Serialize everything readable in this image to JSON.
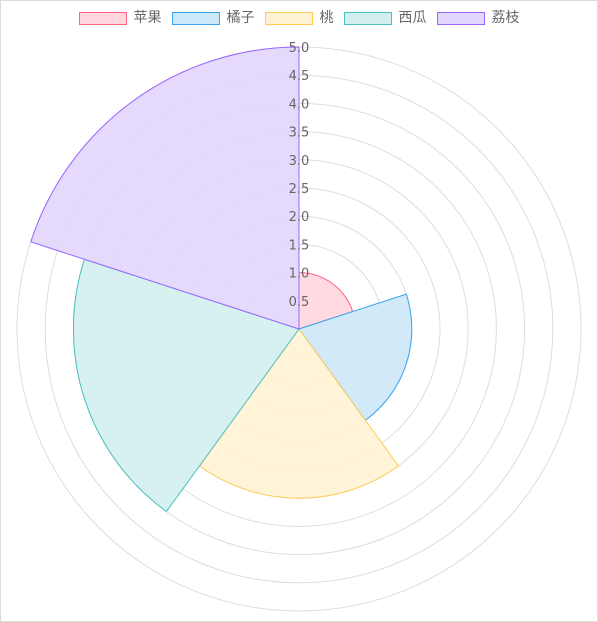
{
  "chart_data": {
    "type": "polarArea",
    "title": "",
    "categories": [
      "苹果",
      "橘子",
      "桃",
      "西瓜",
      "荔枝"
    ],
    "values": [
      1,
      2,
      3,
      4,
      5
    ],
    "colors": {
      "fill": [
        "#ffd6dd",
        "#cce7f8",
        "#fff2d4",
        "#d3eeee",
        "#e3d6fc"
      ],
      "border": [
        "#ff6384",
        "#36a2eb",
        "#ffcd56",
        "#4bc0c0",
        "#9966ff"
      ],
      "grid": "#dddddd"
    },
    "r_range": [
      0,
      5
    ],
    "r_ticks": [
      "0.5",
      "1.0",
      "1.5",
      "2.0",
      "2.5",
      "3.0",
      "3.5",
      "4.0",
      "4.5",
      "5.0"
    ],
    "grid": true,
    "legend_position": "top"
  }
}
